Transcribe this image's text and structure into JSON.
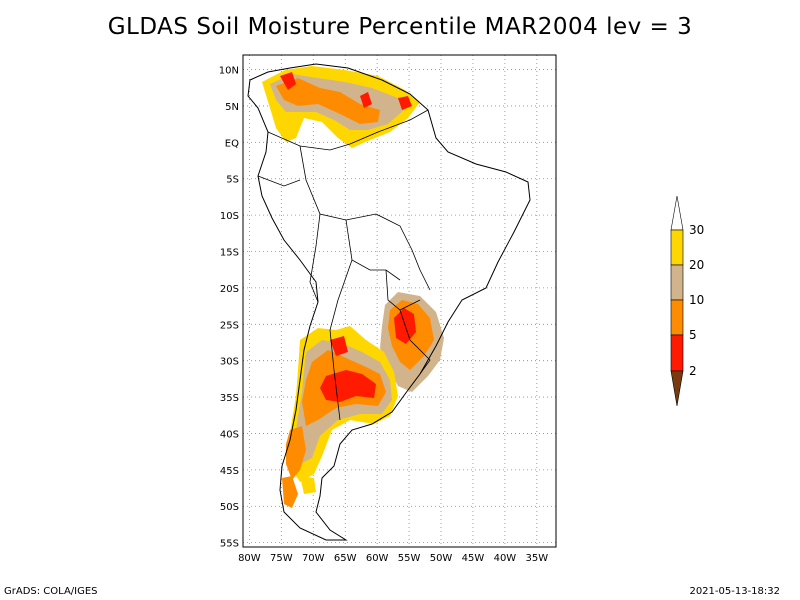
{
  "title": "GLDAS Soil Moisture Percentile MAR2004 lev = 3",
  "credit": "GrADS: COLA/IGES",
  "timestamp": "2021-05-13-18:32",
  "map": {
    "lat_labels": [
      "10N",
      "5N",
      "EQ",
      "5S",
      "10S",
      "15S",
      "20S",
      "25S",
      "30S",
      "35S",
      "40S",
      "45S",
      "50S",
      "55S"
    ],
    "lon_labels": [
      "80W",
      "75W",
      "70W",
      "65W",
      "60W",
      "55W",
      "50W",
      "45W",
      "40W",
      "35W"
    ]
  },
  "legend": {
    "labels": [
      "2",
      "5",
      "10",
      "20",
      "30"
    ],
    "colors": {
      "below_2": "#7a3a0f",
      "2_5": "#ff1a00",
      "5_10": "#ff8c00",
      "10_20": "#d2b48c",
      "20_30": "#ffd700",
      "above_30": "#ffffff"
    }
  }
}
